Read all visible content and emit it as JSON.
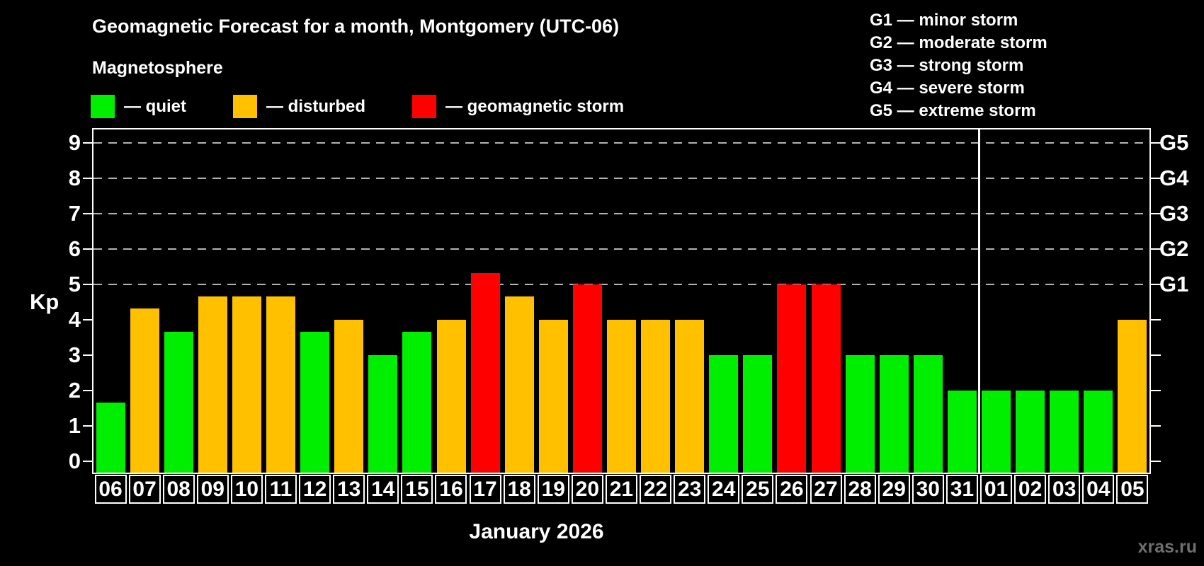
{
  "watermark": "xras.ru",
  "legend": {
    "items": [
      {
        "name": "quiet",
        "label": "— quiet",
        "color": "#00ee00"
      },
      {
        "name": "disturbed",
        "label": "— disturbed",
        "color": "#ffc000"
      },
      {
        "name": "storm",
        "label": "— geomagnetic storm",
        "color": "#ff0000"
      }
    ]
  },
  "g_legend": {
    "items": [
      "G1 — minor storm",
      "G2 — moderate storm",
      "G3 — strong storm",
      "G4 — severe storm",
      "G5 — extreme storm"
    ]
  },
  "chart_data": {
    "type": "bar",
    "title": "Geomagnetic Forecast for a month, Montgomery (UTC-06)",
    "subtitle": "Magnetosphere",
    "xlabel": "January 2026",
    "ylabel": "Kp",
    "categories": [
      "06",
      "07",
      "08",
      "09",
      "10",
      "11",
      "12",
      "13",
      "14",
      "15",
      "16",
      "17",
      "18",
      "19",
      "20",
      "21",
      "22",
      "23",
      "24",
      "25",
      "26",
      "27",
      "28",
      "29",
      "30",
      "31",
      "01",
      "02",
      "03",
      "04",
      "05"
    ],
    "values": [
      1.67,
      4.33,
      3.67,
      4.67,
      4.67,
      4.67,
      3.67,
      4.0,
      3.0,
      3.67,
      4.0,
      5.33,
      4.67,
      4.0,
      5.0,
      4.0,
      4.0,
      4.0,
      3.0,
      3.0,
      5.0,
      5.0,
      3.0,
      3.0,
      3.0,
      2.0,
      2.0,
      2.0,
      2.0,
      2.0,
      4.0
    ],
    "statuses": [
      "quiet",
      "disturbed",
      "quiet",
      "disturbed",
      "disturbed",
      "disturbed",
      "quiet",
      "disturbed",
      "quiet",
      "quiet",
      "disturbed",
      "storm",
      "disturbed",
      "disturbed",
      "storm",
      "disturbed",
      "disturbed",
      "disturbed",
      "quiet",
      "quiet",
      "storm",
      "storm",
      "quiet",
      "quiet",
      "quiet",
      "quiet",
      "quiet",
      "quiet",
      "quiet",
      "quiet",
      "disturbed"
    ],
    "colors": {
      "quiet": "#00ee00",
      "disturbed": "#ffc000",
      "storm": "#ff0000"
    },
    "ylim": [
      0,
      9.4
    ],
    "yticks": [
      0,
      1,
      2,
      3,
      4,
      5,
      6,
      7,
      8,
      9
    ],
    "gridlines_at": [
      5,
      6,
      7,
      8,
      9
    ],
    "grid": "dashed-horizontal-above-kp5",
    "g_scale": [
      {
        "kp": 5,
        "label": "G1"
      },
      {
        "kp": 6,
        "label": "G2"
      },
      {
        "kp": 7,
        "label": "G3"
      },
      {
        "kp": 8,
        "label": "G4"
      },
      {
        "kp": 9,
        "label": "G5"
      }
    ],
    "month_separator_after_index": 25,
    "gridline_color": "#b3b3b3",
    "axis_color": "#ffffff",
    "background_color": "#000000",
    "watermark_color": "#6f6f6f"
  }
}
